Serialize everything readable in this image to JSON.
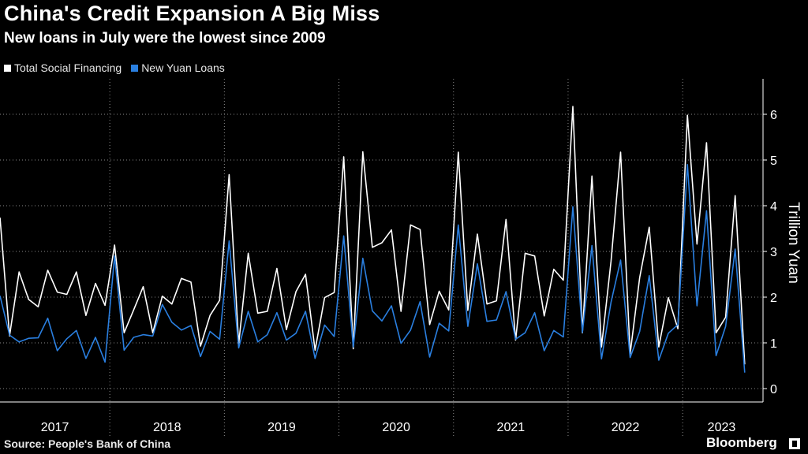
{
  "chart_data": {
    "type": "line",
    "title": "China's Credit Expansion A Big Miss",
    "subtitle": "New loans in July were the lowest since 2009",
    "ylabel": "Trillion Yuan",
    "ylim": [
      -0.2,
      6.7
    ],
    "y_ticks": [
      "0",
      "1",
      "2",
      "3",
      "4",
      "5",
      "6"
    ],
    "x_labels": [
      "2017",
      "2018",
      "2019",
      "2020",
      "2021",
      "2022",
      "2023"
    ],
    "x_start": "2017-01",
    "source": "Source: People's Bank of China",
    "series": [
      {
        "name": "Total Social Financing",
        "color": "#ffffff",
        "values": [
          3.74,
          1.15,
          2.55,
          1.95,
          1.79,
          2.59,
          2.11,
          2.06,
          2.55,
          1.6,
          2.3,
          1.82,
          3.14,
          1.22,
          1.72,
          2.23,
          1.22,
          2.02,
          1.85,
          2.41,
          2.33,
          0.93,
          1.6,
          1.93,
          4.68,
          0.98,
          2.96,
          1.65,
          1.69,
          2.63,
          1.29,
          2.12,
          2.5,
          0.84,
          1.99,
          2.1,
          5.07,
          0.87,
          5.18,
          3.09,
          3.19,
          3.47,
          1.69,
          3.58,
          3.48,
          1.4,
          2.13,
          1.72,
          5.17,
          1.71,
          3.38,
          1.85,
          1.92,
          3.7,
          1.06,
          2.96,
          2.9,
          1.59,
          2.61,
          2.37,
          6.17,
          1.22,
          4.65,
          0.91,
          2.79,
          5.17,
          0.76,
          2.43,
          3.53,
          0.91,
          1.99,
          1.31,
          5.98,
          3.16,
          5.38,
          1.22,
          1.56,
          4.22,
          0.53
        ]
      },
      {
        "name": "New Yuan Loans",
        "color": "#2a7fe0",
        "values": [
          2.03,
          1.17,
          1.02,
          1.1,
          1.11,
          1.54,
          0.83,
          1.09,
          1.27,
          0.66,
          1.12,
          0.58,
          2.9,
          0.84,
          1.12,
          1.18,
          1.15,
          1.84,
          1.45,
          1.28,
          1.38,
          0.7,
          1.25,
          1.08,
          3.23,
          0.89,
          1.69,
          1.02,
          1.18,
          1.66,
          1.06,
          1.21,
          1.69,
          0.66,
          1.39,
          1.14,
          3.34,
          0.91,
          2.85,
          1.7,
          1.48,
          1.81,
          0.99,
          1.28,
          1.9,
          0.69,
          1.43,
          1.26,
          3.58,
          1.36,
          2.73,
          1.47,
          1.5,
          2.12,
          1.08,
          1.22,
          1.66,
          0.83,
          1.27,
          1.13,
          3.98,
          1.23,
          3.13,
          0.65,
          1.89,
          2.81,
          0.68,
          1.25,
          2.47,
          0.62,
          1.21,
          1.4,
          4.9,
          1.81,
          3.89,
          0.72,
          1.36,
          3.05,
          0.35
        ]
      }
    ]
  },
  "brand": "Bloomberg",
  "colors": {
    "background": "#000000",
    "grid": "#ffffff",
    "tfs": "#ffffff",
    "loans": "#2a7fe0"
  },
  "icons": {
    "brand": "bloomberg-logo-icon"
  }
}
